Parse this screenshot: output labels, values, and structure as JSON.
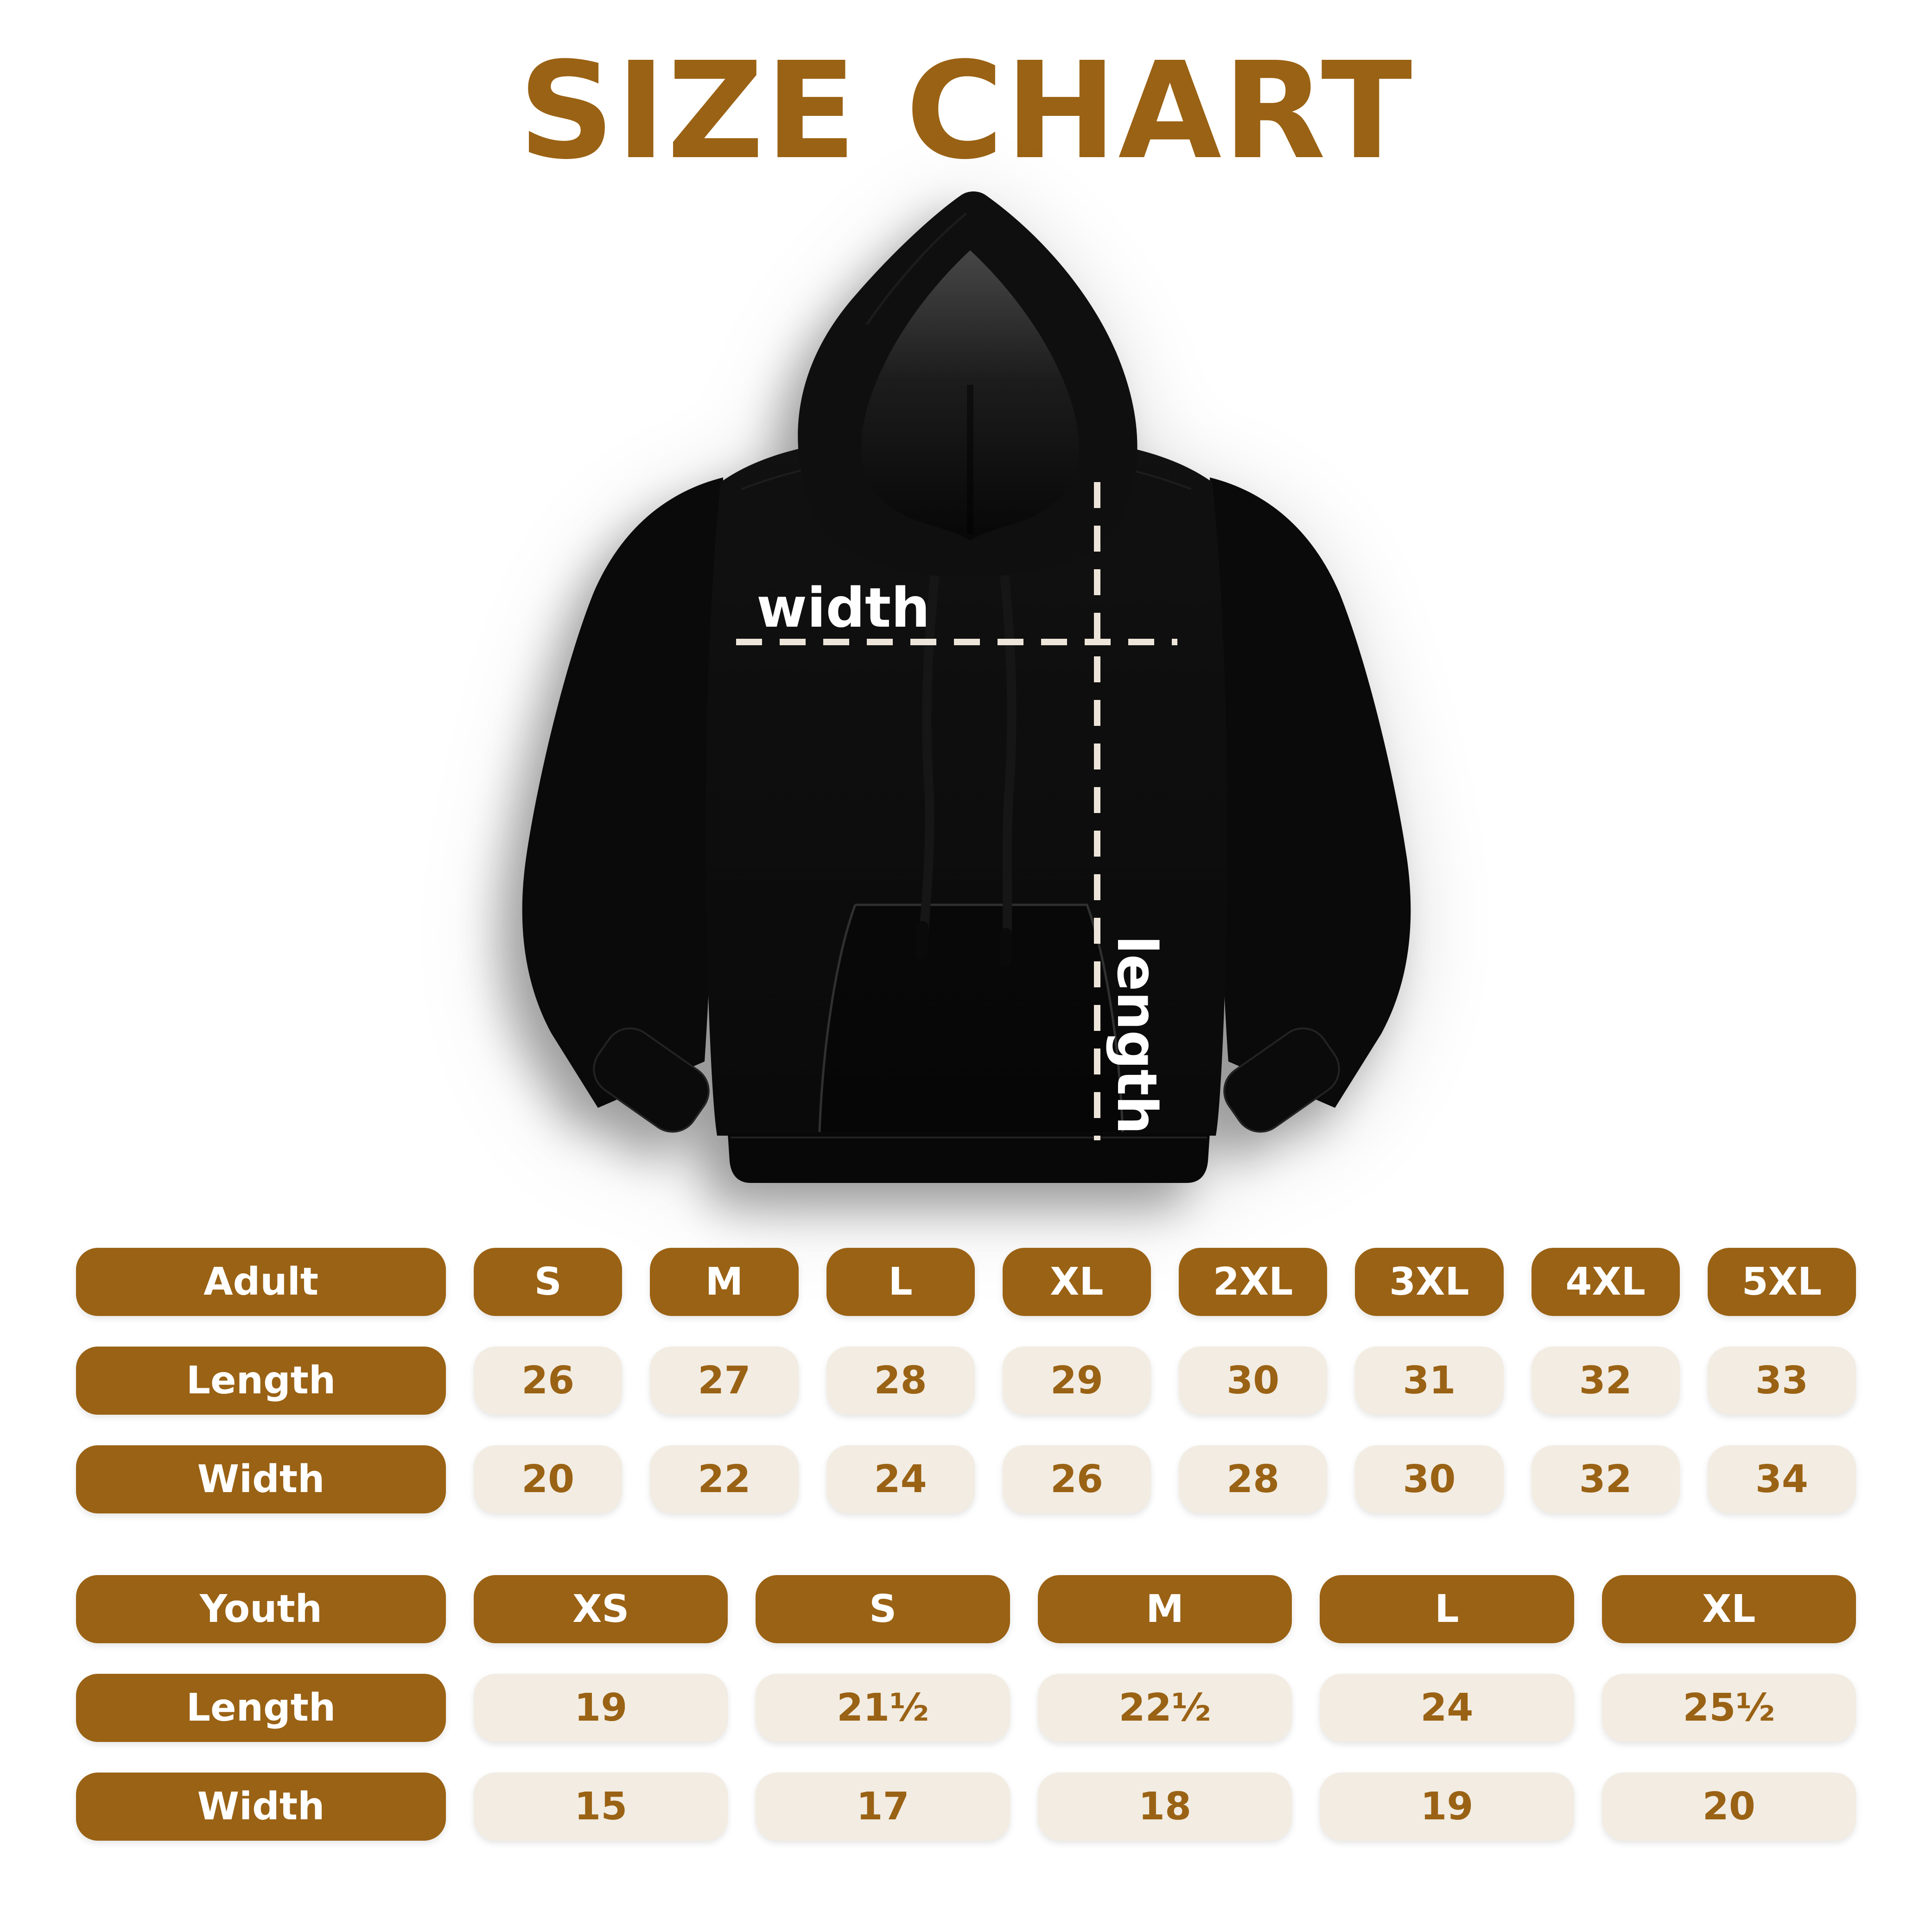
{
  "title": "SIZE CHART",
  "colors": {
    "accent_brown": "#9A6214",
    "cell_beige": "#F2ECE2",
    "dash_cream": "#EDE5D9",
    "hoodie_black": "#0D0D0D",
    "background": "#FFFFFF"
  },
  "hoodie": {
    "image_name": "black-pullover-hoodie-flat-lay",
    "width_label": "width",
    "length_label": "length"
  },
  "tables": [
    {
      "name": "adult",
      "header": {
        "label": "Adult",
        "sizes": [
          "S",
          "M",
          "L",
          "XL",
          "2XL",
          "3XL",
          "4XL",
          "5XL"
        ]
      },
      "rows": [
        {
          "label": "Length",
          "values": [
            "26",
            "27",
            "28",
            "29",
            "30",
            "31",
            "32",
            "33"
          ]
        },
        {
          "label": "Width",
          "values": [
            "20",
            "22",
            "24",
            "26",
            "28",
            "30",
            "32",
            "34"
          ]
        }
      ]
    },
    {
      "name": "youth",
      "header": {
        "label": "Youth",
        "sizes": [
          "XS",
          "S",
          "M",
          "L",
          "XL"
        ]
      },
      "rows": [
        {
          "label": "Length",
          "values": [
            "19",
            "21½",
            "22½",
            "24",
            "25½"
          ]
        },
        {
          "label": "Width",
          "values": [
            "15",
            "17",
            "18",
            "19",
            "20"
          ]
        }
      ]
    }
  ],
  "chart_data": [
    {
      "type": "table",
      "title": "Adult",
      "columns": [
        "S",
        "M",
        "L",
        "XL",
        "2XL",
        "3XL",
        "4XL",
        "5XL"
      ],
      "rows": [
        {
          "label": "Length",
          "values": [
            26,
            27,
            28,
            29,
            30,
            31,
            32,
            33
          ]
        },
        {
          "label": "Width",
          "values": [
            20,
            22,
            24,
            26,
            28,
            30,
            32,
            34
          ]
        }
      ]
    },
    {
      "type": "table",
      "title": "Youth",
      "columns": [
        "XS",
        "S",
        "M",
        "L",
        "XL"
      ],
      "rows": [
        {
          "label": "Length",
          "values": [
            19,
            21.5,
            22.5,
            24,
            25.5
          ]
        },
        {
          "label": "Width",
          "values": [
            15,
            17,
            18,
            19,
            20
          ]
        }
      ]
    }
  ]
}
